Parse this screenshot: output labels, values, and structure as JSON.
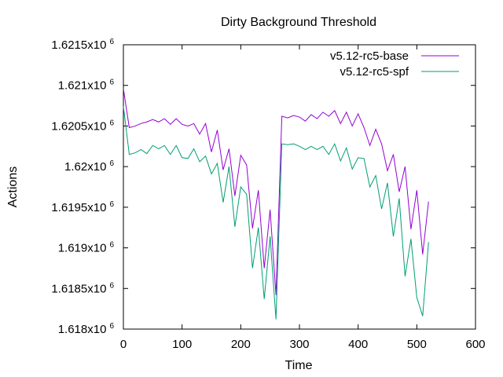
{
  "chart_data": {
    "type": "line",
    "title": "Dirty Background Threshold",
    "xlabel": "Time",
    "ylabel": "Actions",
    "xlim": [
      0,
      600
    ],
    "ylim": [
      1618000,
      1621500
    ],
    "x_ticks": [
      0,
      100,
      200,
      300,
      400,
      500,
      600
    ],
    "y_ticks": [
      {
        "value": 1618000,
        "mantissa": "1.618x10",
        "exp": "6"
      },
      {
        "value": 1618500,
        "mantissa": "1.6185x10",
        "exp": "6"
      },
      {
        "value": 1619000,
        "mantissa": "1.619x10",
        "exp": "6"
      },
      {
        "value": 1619500,
        "mantissa": "1.6195x10",
        "exp": "6"
      },
      {
        "value": 1620000,
        "mantissa": "1.62x10",
        "exp": "6"
      },
      {
        "value": 1620500,
        "mantissa": "1.6205x10",
        "exp": "6"
      },
      {
        "value": 1621000,
        "mantissa": "1.621x10",
        "exp": "6"
      },
      {
        "value": 1621500,
        "mantissa": "1.6215x10",
        "exp": "6"
      }
    ],
    "grid": false,
    "legend_position": "top-right",
    "x": [
      0,
      10,
      20,
      30,
      40,
      50,
      60,
      70,
      80,
      90,
      100,
      110,
      120,
      130,
      140,
      150,
      160,
      170,
      180,
      190,
      200,
      210,
      220,
      230,
      240,
      250,
      260,
      270,
      280,
      290,
      300,
      310,
      320,
      330,
      340,
      350,
      360,
      370,
      380,
      390,
      400,
      410,
      420,
      430,
      440,
      450,
      460,
      470,
      480,
      490,
      500,
      510,
      520
    ],
    "series": [
      {
        "name": "v5.12-rc5-base",
        "color": "#9400d3",
        "values": [
          1620960,
          1620480,
          1620500,
          1620530,
          1620550,
          1620580,
          1620550,
          1620590,
          1620520,
          1620590,
          1620520,
          1620500,
          1620530,
          1620400,
          1620530,
          1620180,
          1620450,
          1619960,
          1620220,
          1619640,
          1620140,
          1620020,
          1619240,
          1619710,
          1618750,
          1619470,
          1618420,
          1620620,
          1620600,
          1620630,
          1620610,
          1620560,
          1620640,
          1620590,
          1620670,
          1620620,
          1620690,
          1620530,
          1620670,
          1620500,
          1620650,
          1620480,
          1620260,
          1620460,
          1620280,
          1619950,
          1620150,
          1619690,
          1620000,
          1619230,
          1619710,
          1618920,
          1619570
        ]
      },
      {
        "name": "v5.12-rc5-spf",
        "color": "#009e73",
        "values": [
          1620740,
          1620150,
          1620170,
          1620210,
          1620160,
          1620260,
          1620220,
          1620260,
          1620150,
          1620260,
          1620110,
          1620100,
          1620220,
          1620060,
          1620130,
          1619910,
          1620040,
          1619560,
          1620000,
          1619260,
          1619750,
          1619660,
          1618750,
          1619250,
          1618370,
          1619140,
          1618120,
          1620280,
          1620270,
          1620280,
          1620250,
          1620210,
          1620250,
          1620210,
          1620250,
          1620150,
          1620280,
          1620070,
          1620230,
          1619970,
          1620110,
          1620100,
          1619750,
          1619890,
          1619480,
          1619800,
          1619140,
          1619610,
          1618650,
          1619110,
          1618390,
          1618160,
          1619070
        ]
      }
    ]
  }
}
